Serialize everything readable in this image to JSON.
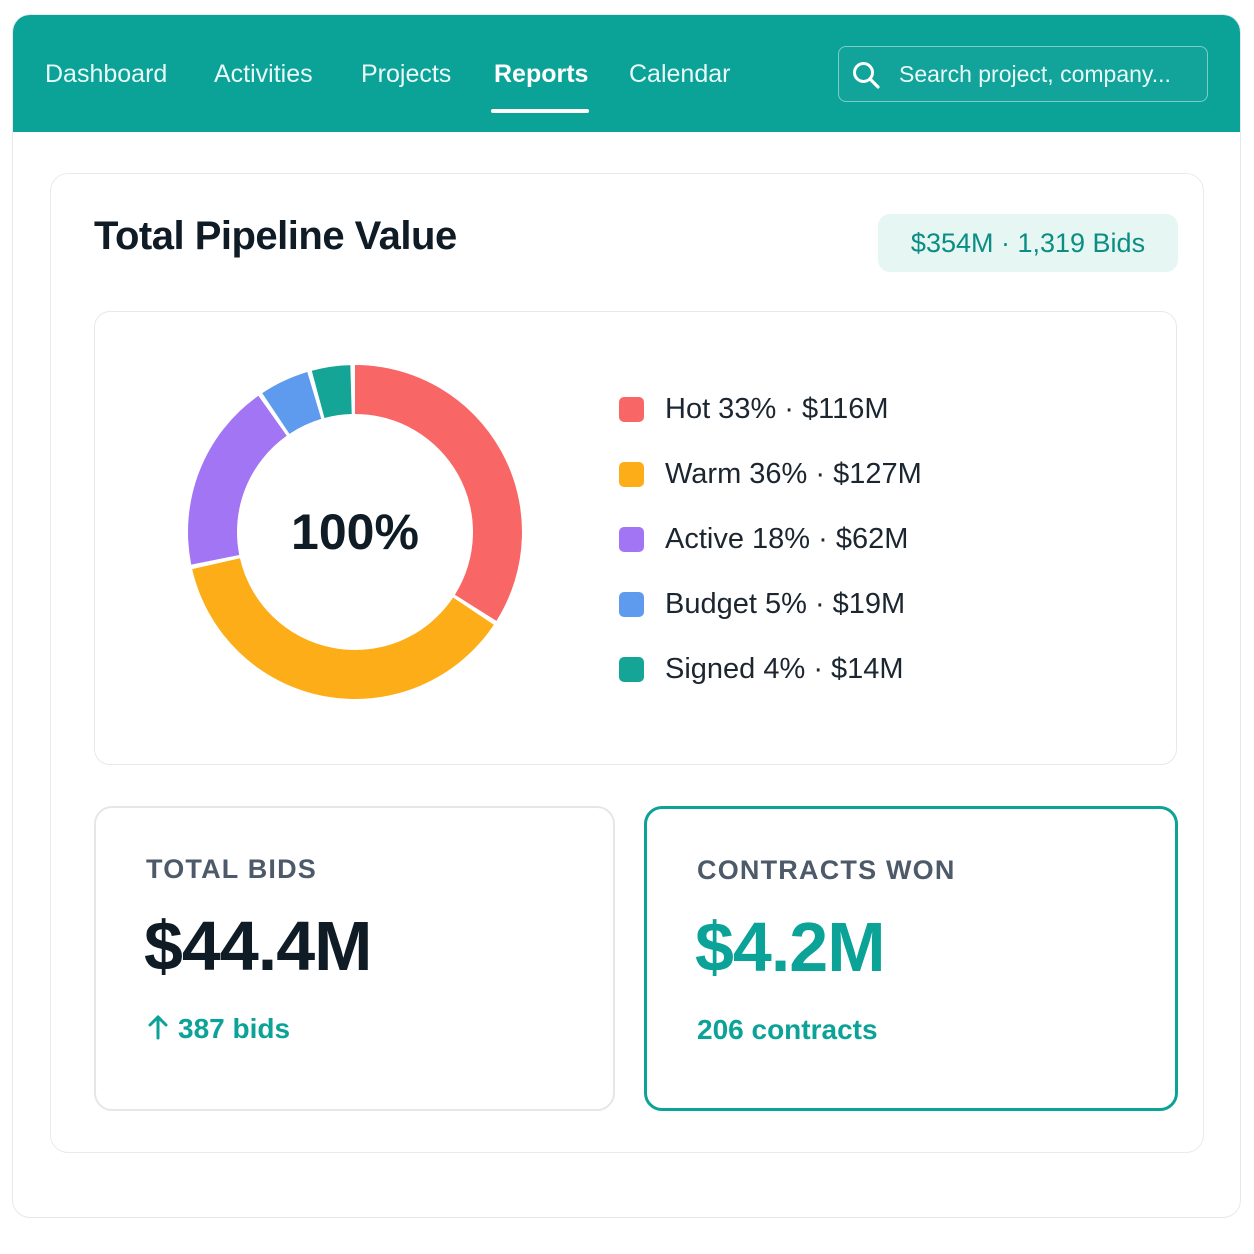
{
  "nav": {
    "items": [
      {
        "label": "Dashboard",
        "active": false
      },
      {
        "label": "Activities",
        "active": false
      },
      {
        "label": "Projects",
        "active": false
      },
      {
        "label": "Reports",
        "active": true
      },
      {
        "label": "Calendar",
        "active": false
      }
    ],
    "search": {
      "placeholder": "Search project, company...",
      "icon": "search-icon"
    }
  },
  "pipeline": {
    "title": "Total Pipeline Value",
    "summary": "$354M · 1,319 Bids",
    "center_label": "100%"
  },
  "chart_data": {
    "type": "pie",
    "donut": true,
    "center_label": "100%",
    "slices": [
      {
        "name": "Hot",
        "percent": 33,
        "value": "$116M",
        "label": "Hot 33% · $116M",
        "color": "#f96666"
      },
      {
        "name": "Warm",
        "percent": 36,
        "value": "$127M",
        "label": "Warm 36% · $127M",
        "color": "#fcad18"
      },
      {
        "name": "Active",
        "percent": 18,
        "value": "$62M",
        "label": "Active 18% · $62M",
        "color": "#a175f4"
      },
      {
        "name": "Budget",
        "percent": 5,
        "value": "$19M",
        "label": "Budget 5% · $19M",
        "color": "#5e9bef"
      },
      {
        "name": "Signed",
        "percent": 4,
        "value": "$14M",
        "label": "Signed 4% · $14M",
        "color": "#15a596"
      }
    ],
    "legend_position": "right"
  },
  "stats": {
    "bids": {
      "label": "TOTAL BIDS",
      "value": "$44.4M",
      "sub": "387 bids",
      "sub_icon": "up-arrow-icon"
    },
    "won": {
      "label": "CONTRACTS WON",
      "value": "$4.2M",
      "sub": "206 contracts"
    }
  },
  "colors": {
    "brand": "#0ba297",
    "badge_bg": "#e6f6f3",
    "text_dark": "#0f1b25"
  }
}
